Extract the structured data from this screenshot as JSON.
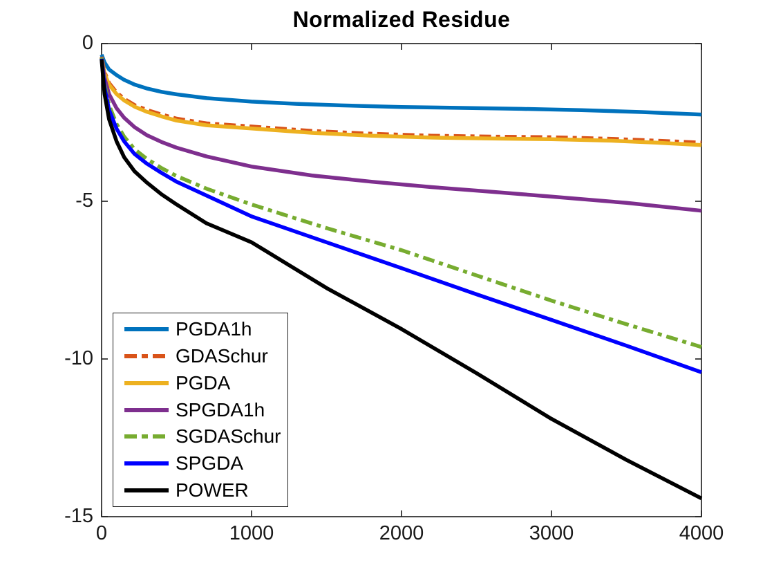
{
  "title": "Normalized Residue",
  "chart_data": {
    "type": "line",
    "title": "Normalized Residue",
    "xlabel": "",
    "ylabel": "",
    "xlim": [
      0,
      4000
    ],
    "ylim": [
      -15,
      0
    ],
    "x_ticks": [
      "0",
      "1000",
      "2000",
      "3000",
      "4000"
    ],
    "x_tick_values": [
      0,
      1000,
      2000,
      3000,
      4000
    ],
    "y_ticks": [
      "0",
      "-5",
      "-10",
      "-15"
    ],
    "y_tick_values": [
      0,
      -5,
      -10,
      -15
    ],
    "grid": false,
    "legend_position": "lower-left",
    "axis_color": "#1a1a1a",
    "series": [
      {
        "name": "PGDA1h",
        "color": "#0072BD",
        "style": "solid",
        "points": [
          [
            0,
            -0.35
          ],
          [
            20,
            -0.6
          ],
          [
            50,
            -0.82
          ],
          [
            100,
            -1.0
          ],
          [
            150,
            -1.15
          ],
          [
            220,
            -1.3
          ],
          [
            300,
            -1.42
          ],
          [
            400,
            -1.53
          ],
          [
            500,
            -1.61
          ],
          [
            700,
            -1.73
          ],
          [
            1000,
            -1.84
          ],
          [
            1300,
            -1.91
          ],
          [
            1600,
            -1.96
          ],
          [
            2000,
            -2.01
          ],
          [
            2400,
            -2.04
          ],
          [
            2800,
            -2.07
          ],
          [
            3200,
            -2.11
          ],
          [
            3600,
            -2.17
          ],
          [
            4000,
            -2.25
          ]
        ]
      },
      {
        "name": "GDASchur",
        "color": "#D95319",
        "style": "dashdot",
        "points": [
          [
            0,
            -0.42
          ],
          [
            20,
            -0.9
          ],
          [
            50,
            -1.25
          ],
          [
            100,
            -1.55
          ],
          [
            150,
            -1.75
          ],
          [
            220,
            -1.95
          ],
          [
            300,
            -2.1
          ],
          [
            400,
            -2.25
          ],
          [
            500,
            -2.38
          ],
          [
            700,
            -2.53
          ],
          [
            1000,
            -2.63
          ],
          [
            1400,
            -2.77
          ],
          [
            1800,
            -2.86
          ],
          [
            2200,
            -2.92
          ],
          [
            2600,
            -2.95
          ],
          [
            3000,
            -2.97
          ],
          [
            3400,
            -3.02
          ],
          [
            3700,
            -3.08
          ],
          [
            4000,
            -3.14
          ]
        ]
      },
      {
        "name": "PGDA",
        "color": "#EDB120",
        "style": "solid",
        "points": [
          [
            0,
            -0.45
          ],
          [
            20,
            -0.95
          ],
          [
            50,
            -1.3
          ],
          [
            100,
            -1.6
          ],
          [
            150,
            -1.8
          ],
          [
            220,
            -2.0
          ],
          [
            300,
            -2.16
          ],
          [
            400,
            -2.31
          ],
          [
            500,
            -2.44
          ],
          [
            700,
            -2.59
          ],
          [
            1000,
            -2.69
          ],
          [
            1400,
            -2.83
          ],
          [
            1800,
            -2.92
          ],
          [
            2200,
            -2.98
          ],
          [
            2600,
            -3.01
          ],
          [
            3000,
            -3.03
          ],
          [
            3400,
            -3.08
          ],
          [
            3700,
            -3.14
          ],
          [
            4000,
            -3.22
          ]
        ]
      },
      {
        "name": "SPGDA1h",
        "color": "#7E2F8E",
        "style": "solid",
        "points": [
          [
            0,
            -0.45
          ],
          [
            20,
            -1.1
          ],
          [
            50,
            -1.6
          ],
          [
            100,
            -2.05
          ],
          [
            150,
            -2.35
          ],
          [
            220,
            -2.65
          ],
          [
            300,
            -2.9
          ],
          [
            400,
            -3.12
          ],
          [
            500,
            -3.3
          ],
          [
            700,
            -3.58
          ],
          [
            1000,
            -3.9
          ],
          [
            1400,
            -4.18
          ],
          [
            1800,
            -4.38
          ],
          [
            2200,
            -4.55
          ],
          [
            2600,
            -4.7
          ],
          [
            3000,
            -4.85
          ],
          [
            3500,
            -5.05
          ],
          [
            4000,
            -5.3
          ]
        ]
      },
      {
        "name": "SGDASchur",
        "color": "#77AC30",
        "style": "dashdot",
        "points": [
          [
            0,
            -0.45
          ],
          [
            20,
            -1.3
          ],
          [
            50,
            -1.95
          ],
          [
            100,
            -2.55
          ],
          [
            150,
            -2.95
          ],
          [
            220,
            -3.35
          ],
          [
            300,
            -3.65
          ],
          [
            400,
            -3.95
          ],
          [
            500,
            -4.2
          ],
          [
            700,
            -4.6
          ],
          [
            1000,
            -5.1
          ],
          [
            1500,
            -5.85
          ],
          [
            2000,
            -6.55
          ],
          [
            2500,
            -7.35
          ],
          [
            3000,
            -8.15
          ],
          [
            3500,
            -8.9
          ],
          [
            4000,
            -9.62
          ]
        ]
      },
      {
        "name": "SPGDA",
        "color": "#0000FF",
        "style": "solid",
        "points": [
          [
            0,
            -0.48
          ],
          [
            20,
            -1.4
          ],
          [
            50,
            -2.1
          ],
          [
            100,
            -2.7
          ],
          [
            150,
            -3.1
          ],
          [
            220,
            -3.5
          ],
          [
            300,
            -3.8
          ],
          [
            400,
            -4.1
          ],
          [
            500,
            -4.38
          ],
          [
            700,
            -4.82
          ],
          [
            1000,
            -5.48
          ],
          [
            1500,
            -6.3
          ],
          [
            2000,
            -7.12
          ],
          [
            2500,
            -7.95
          ],
          [
            3000,
            -8.76
          ],
          [
            3500,
            -9.58
          ],
          [
            4000,
            -10.42
          ]
        ]
      },
      {
        "name": "POWER",
        "color": "#000000",
        "style": "solid",
        "points": [
          [
            0,
            -0.5
          ],
          [
            20,
            -1.6
          ],
          [
            50,
            -2.4
          ],
          [
            100,
            -3.1
          ],
          [
            150,
            -3.6
          ],
          [
            220,
            -4.05
          ],
          [
            300,
            -4.4
          ],
          [
            400,
            -4.78
          ],
          [
            500,
            -5.1
          ],
          [
            700,
            -5.7
          ],
          [
            1000,
            -6.3
          ],
          [
            1500,
            -7.75
          ],
          [
            2000,
            -9.05
          ],
          [
            2500,
            -10.45
          ],
          [
            3000,
            -11.9
          ],
          [
            3500,
            -13.2
          ],
          [
            4000,
            -14.42
          ]
        ]
      }
    ]
  }
}
